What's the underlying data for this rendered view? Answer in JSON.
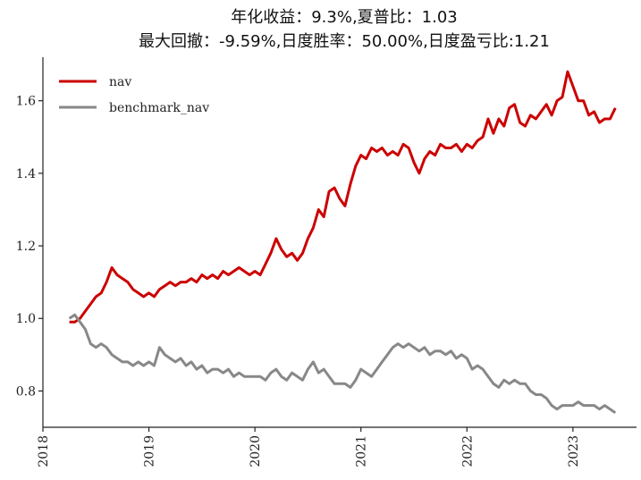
{
  "chart_data": {
    "type": "line",
    "title_line1": "年化收益：9.3%,夏普比：1.03",
    "title_line2": "最大回撤：-9.59%,日度胜率：50.00%,日度盈亏比:1.21",
    "xlabel": "",
    "ylabel": "",
    "xlim": [
      2018.0,
      2023.6
    ],
    "ylim": [
      0.7,
      1.72
    ],
    "x_ticks": [
      2018,
      2019,
      2020,
      2021,
      2022,
      2023
    ],
    "x_tick_labels": [
      "2018",
      "2019",
      "2020",
      "2021",
      "2022",
      "2023"
    ],
    "y_ticks": [
      0.8,
      1.0,
      1.2,
      1.4,
      1.6
    ],
    "y_tick_labels": [
      "0.8",
      "1.0",
      "1.2",
      "1.4",
      "1.6"
    ],
    "grid": false,
    "legend_position": "top-left",
    "series": [
      {
        "name": "nav",
        "color": "#cc0000",
        "x": [
          2018.25,
          2018.3,
          2018.35,
          2018.4,
          2018.45,
          2018.5,
          2018.55,
          2018.6,
          2018.65,
          2018.7,
          2018.75,
          2018.8,
          2018.85,
          2018.9,
          2018.95,
          2019.0,
          2019.05,
          2019.1,
          2019.15,
          2019.2,
          2019.25,
          2019.3,
          2019.35,
          2019.4,
          2019.45,
          2019.5,
          2019.55,
          2019.6,
          2019.65,
          2019.7,
          2019.75,
          2019.8,
          2019.85,
          2019.9,
          2019.95,
          2020.0,
          2020.05,
          2020.1,
          2020.15,
          2020.2,
          2020.25,
          2020.3,
          2020.35,
          2020.4,
          2020.45,
          2020.5,
          2020.55,
          2020.6,
          2020.65,
          2020.7,
          2020.75,
          2020.8,
          2020.85,
          2020.9,
          2020.95,
          2021.0,
          2021.05,
          2021.1,
          2021.15,
          2021.2,
          2021.25,
          2021.3,
          2021.35,
          2021.4,
          2021.45,
          2021.5,
          2021.55,
          2021.6,
          2021.65,
          2021.7,
          2021.75,
          2021.8,
          2021.85,
          2021.9,
          2021.95,
          2022.0,
          2022.05,
          2022.1,
          2022.15,
          2022.2,
          2022.25,
          2022.3,
          2022.35,
          2022.4,
          2022.45,
          2022.5,
          2022.55,
          2022.6,
          2022.65,
          2022.7,
          2022.75,
          2022.8,
          2022.85,
          2022.9,
          2022.95,
          2023.0,
          2023.05,
          2023.1,
          2023.15,
          2023.2,
          2023.25,
          2023.3,
          2023.35,
          2023.4
        ],
        "values": [
          0.99,
          0.99,
          1.0,
          1.02,
          1.04,
          1.06,
          1.07,
          1.1,
          1.14,
          1.12,
          1.11,
          1.1,
          1.08,
          1.07,
          1.06,
          1.07,
          1.06,
          1.08,
          1.09,
          1.1,
          1.09,
          1.1,
          1.1,
          1.11,
          1.1,
          1.12,
          1.11,
          1.12,
          1.11,
          1.13,
          1.12,
          1.13,
          1.14,
          1.13,
          1.12,
          1.13,
          1.12,
          1.15,
          1.18,
          1.22,
          1.19,
          1.17,
          1.18,
          1.16,
          1.18,
          1.22,
          1.25,
          1.3,
          1.28,
          1.35,
          1.36,
          1.33,
          1.31,
          1.37,
          1.42,
          1.45,
          1.44,
          1.47,
          1.46,
          1.47,
          1.45,
          1.46,
          1.45,
          1.48,
          1.47,
          1.43,
          1.4,
          1.44,
          1.46,
          1.45,
          1.48,
          1.47,
          1.47,
          1.48,
          1.46,
          1.48,
          1.47,
          1.49,
          1.5,
          1.55,
          1.51,
          1.55,
          1.53,
          1.58,
          1.59,
          1.54,
          1.53,
          1.56,
          1.55,
          1.57,
          1.59,
          1.56,
          1.6,
          1.61,
          1.68,
          1.64,
          1.6,
          1.6,
          1.56,
          1.57,
          1.54,
          1.55,
          1.55,
          1.58
        ]
      },
      {
        "name": "benchmark_nav",
        "color": "#888888",
        "x": [
          2018.25,
          2018.3,
          2018.35,
          2018.4,
          2018.45,
          2018.5,
          2018.55,
          2018.6,
          2018.65,
          2018.7,
          2018.75,
          2018.8,
          2018.85,
          2018.9,
          2018.95,
          2019.0,
          2019.05,
          2019.1,
          2019.15,
          2019.2,
          2019.25,
          2019.3,
          2019.35,
          2019.4,
          2019.45,
          2019.5,
          2019.55,
          2019.6,
          2019.65,
          2019.7,
          2019.75,
          2019.8,
          2019.85,
          2019.9,
          2019.95,
          2020.0,
          2020.05,
          2020.1,
          2020.15,
          2020.2,
          2020.25,
          2020.3,
          2020.35,
          2020.4,
          2020.45,
          2020.5,
          2020.55,
          2020.6,
          2020.65,
          2020.7,
          2020.75,
          2020.8,
          2020.85,
          2020.9,
          2020.95,
          2021.0,
          2021.05,
          2021.1,
          2021.15,
          2021.2,
          2021.25,
          2021.3,
          2021.35,
          2021.4,
          2021.45,
          2021.5,
          2021.55,
          2021.6,
          2021.65,
          2021.7,
          2021.75,
          2021.8,
          2021.85,
          2021.9,
          2021.95,
          2022.0,
          2022.05,
          2022.1,
          2022.15,
          2022.2,
          2022.25,
          2022.3,
          2022.35,
          2022.4,
          2022.45,
          2022.5,
          2022.55,
          2022.6,
          2022.65,
          2022.7,
          2022.75,
          2022.8,
          2022.85,
          2022.9,
          2022.95,
          2023.0,
          2023.05,
          2023.1,
          2023.15,
          2023.2,
          2023.25,
          2023.3,
          2023.35,
          2023.4
        ],
        "values": [
          1.0,
          1.01,
          0.99,
          0.97,
          0.93,
          0.92,
          0.93,
          0.92,
          0.9,
          0.89,
          0.88,
          0.88,
          0.87,
          0.88,
          0.87,
          0.88,
          0.87,
          0.92,
          0.9,
          0.89,
          0.88,
          0.89,
          0.87,
          0.88,
          0.86,
          0.87,
          0.85,
          0.86,
          0.86,
          0.85,
          0.86,
          0.84,
          0.85,
          0.84,
          0.84,
          0.84,
          0.84,
          0.83,
          0.85,
          0.86,
          0.84,
          0.83,
          0.85,
          0.84,
          0.83,
          0.86,
          0.88,
          0.85,
          0.86,
          0.84,
          0.82,
          0.82,
          0.82,
          0.81,
          0.83,
          0.86,
          0.85,
          0.84,
          0.86,
          0.88,
          0.9,
          0.92,
          0.93,
          0.92,
          0.93,
          0.92,
          0.91,
          0.92,
          0.9,
          0.91,
          0.91,
          0.9,
          0.91,
          0.89,
          0.9,
          0.89,
          0.86,
          0.87,
          0.86,
          0.84,
          0.82,
          0.81,
          0.83,
          0.82,
          0.83,
          0.82,
          0.82,
          0.8,
          0.79,
          0.79,
          0.78,
          0.76,
          0.75,
          0.76,
          0.76,
          0.76,
          0.77,
          0.76,
          0.76,
          0.76,
          0.75,
          0.76,
          0.75,
          0.74
        ]
      }
    ]
  }
}
